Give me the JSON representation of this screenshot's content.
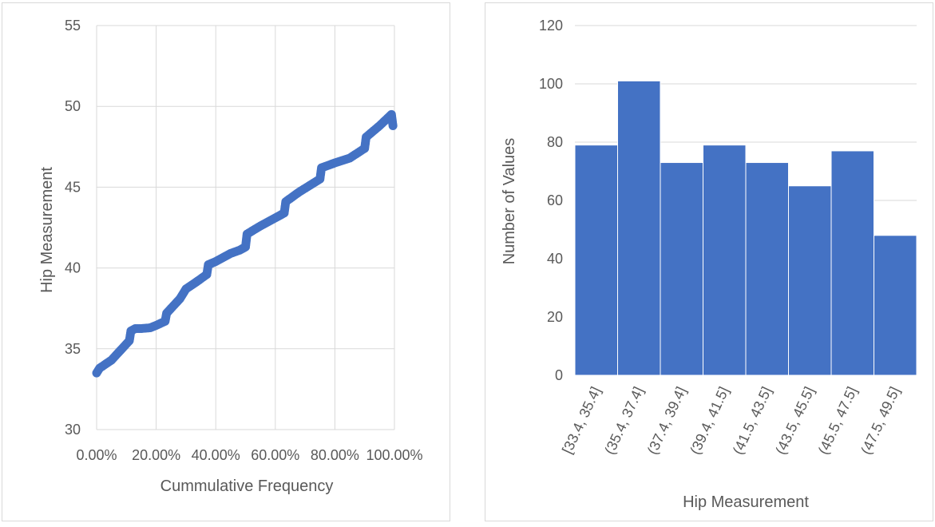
{
  "chart_data": [
    {
      "type": "scatter",
      "title": "",
      "xlabel": "Cummulative Frequency",
      "ylabel": "Hip Measurement",
      "xlim": [
        0,
        1
      ],
      "ylim": [
        30,
        55
      ],
      "x_ticks": [
        "0.00%",
        "20.00%",
        "40.00%",
        "60.00%",
        "80.00%",
        "100.00%"
      ],
      "y_ticks": [
        "30",
        "35",
        "40",
        "45",
        "50",
        "55"
      ],
      "grid": true,
      "color": "#4472C4",
      "curve": [
        {
          "x": 0.0,
          "y": 33.5
        },
        {
          "x": 0.01,
          "y": 33.8
        },
        {
          "x": 0.05,
          "y": 34.3
        },
        {
          "x": 0.08,
          "y": 34.9
        },
        {
          "x": 0.11,
          "y": 35.5
        },
        {
          "x": 0.115,
          "y": 36.1
        },
        {
          "x": 0.13,
          "y": 36.25
        },
        {
          "x": 0.15,
          "y": 36.25
        },
        {
          "x": 0.18,
          "y": 36.3
        },
        {
          "x": 0.2,
          "y": 36.45
        },
        {
          "x": 0.23,
          "y": 36.7
        },
        {
          "x": 0.235,
          "y": 37.2
        },
        {
          "x": 0.28,
          "y": 38.1
        },
        {
          "x": 0.3,
          "y": 38.7
        },
        {
          "x": 0.34,
          "y": 39.2
        },
        {
          "x": 0.37,
          "y": 39.6
        },
        {
          "x": 0.375,
          "y": 40.2
        },
        {
          "x": 0.4,
          "y": 40.4
        },
        {
          "x": 0.45,
          "y": 40.9
        },
        {
          "x": 0.48,
          "y": 41.1
        },
        {
          "x": 0.5,
          "y": 41.3
        },
        {
          "x": 0.505,
          "y": 42.1
        },
        {
          "x": 0.55,
          "y": 42.6
        },
        {
          "x": 0.6,
          "y": 43.1
        },
        {
          "x": 0.63,
          "y": 43.4
        },
        {
          "x": 0.635,
          "y": 44.1
        },
        {
          "x": 0.68,
          "y": 44.7
        },
        {
          "x": 0.75,
          "y": 45.5
        },
        {
          "x": 0.755,
          "y": 46.2
        },
        {
          "x": 0.8,
          "y": 46.5
        },
        {
          "x": 0.85,
          "y": 46.8
        },
        {
          "x": 0.9,
          "y": 47.4
        },
        {
          "x": 0.905,
          "y": 48.1
        },
        {
          "x": 0.95,
          "y": 48.8
        },
        {
          "x": 0.99,
          "y": 49.5
        },
        {
          "x": 0.995,
          "y": 48.8
        }
      ]
    },
    {
      "type": "bar",
      "title": "",
      "xlabel": "Hip Measurement",
      "ylabel": "Number of Values",
      "ylim": [
        0,
        120
      ],
      "y_ticks": [
        "0",
        "20",
        "40",
        "60",
        "80",
        "100",
        "120"
      ],
      "grid": true,
      "color": "#4472C4",
      "categories": [
        "[33.4, 35.4]",
        "(35.4, 37.4]",
        "(37.4, 39.4]",
        "(39.4, 41.5]",
        "(41.5, 43.5]",
        "(43.5, 45.5]",
        "(45.5, 47.5]",
        "(47.5, 49.5]"
      ],
      "values": [
        79,
        101,
        73,
        79,
        73,
        65,
        77,
        48
      ]
    }
  ]
}
